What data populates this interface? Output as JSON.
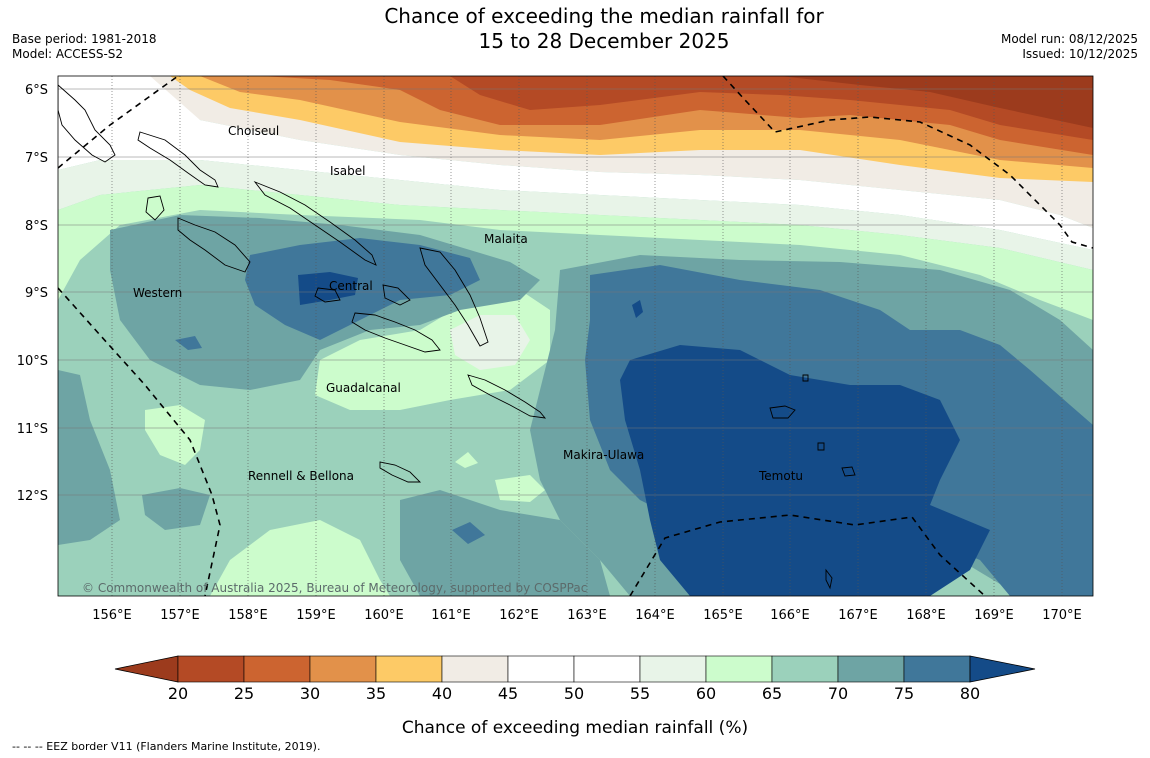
{
  "header": {
    "title_line1": "Chance of exceeding the median rainfall for",
    "title_line2": "15 to 28 December 2025",
    "base_period": "Base period: 1981-2018",
    "model": "Model: ACCESS-S2",
    "model_run": "Model run: 08/12/2025",
    "issued": "Issued: 10/12/2025"
  },
  "map": {
    "copyright": "© Commonwealth of Australia 2025, Bureau of Meteorology, supported by COSPPac",
    "lat_labels": [
      "6°S",
      "7°S",
      "8°S",
      "9°S",
      "10°S",
      "11°S",
      "12°S"
    ],
    "lon_labels": [
      "156°E",
      "157°E",
      "158°E",
      "159°E",
      "160°E",
      "161°E",
      "162°E",
      "163°E",
      "164°E",
      "165°E",
      "166°E",
      "167°E",
      "168°E",
      "169°E",
      "170°E"
    ],
    "places": [
      "Choiseul",
      "Isabel",
      "Malaita",
      "Western",
      "Central",
      "Guadalcanal",
      "Makira-Ulawa",
      "Rennell & Bellona",
      "Temotu"
    ]
  },
  "colorbar": {
    "label": "Chance of exceeding median rainfall (%)",
    "ticks": [
      "20",
      "25",
      "30",
      "35",
      "40",
      "45",
      "50",
      "55",
      "60",
      "65",
      "70",
      "75",
      "80"
    ],
    "colors": [
      "#9c3b1d",
      "#b44a25",
      "#cc6430",
      "#e2914a",
      "#fdca66",
      "#f1ece5",
      "#ffffff",
      "#ffffff",
      "#e8f4e8",
      "#ccfccc",
      "#9bd1bb",
      "#6ea4a4",
      "#40779a",
      "#144b88"
    ]
  },
  "footnote": "--  --  -- EEZ border V11 (Flanders Marine Institute, 2019)."
}
